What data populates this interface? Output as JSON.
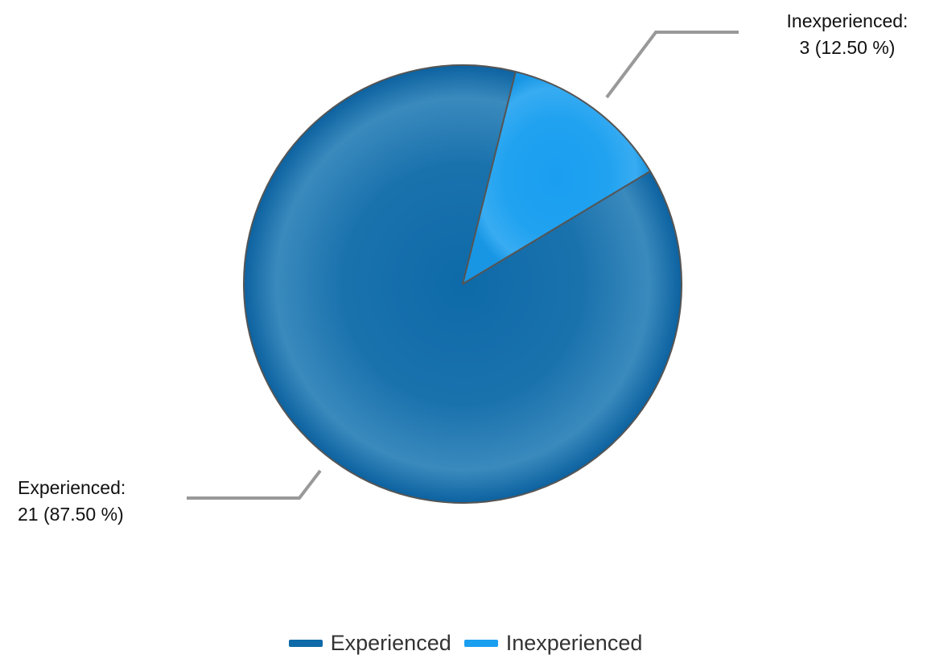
{
  "chart_data": {
    "type": "pie",
    "categories": [
      "Experienced",
      "Inexperienced"
    ],
    "values": [
      21,
      3
    ],
    "percentages": [
      "87.50 %",
      "12.50 %"
    ],
    "colors": [
      "#0e6aa8",
      "#1a9ef0"
    ],
    "slices": [
      {
        "name": "Experienced",
        "value": 21,
        "percent": "87.50 %",
        "label_line1": "Experienced:",
        "label_line2": "21 (87.50 %)"
      },
      {
        "name": "Inexperienced",
        "value": 3,
        "percent": "12.50 %",
        "label_line1": "Inexperienced:",
        "label_line2": "3 (12.50 %)"
      }
    ],
    "legend": {
      "position": "bottom",
      "items": [
        {
          "label": "Experienced",
          "color": "#0e6aa8"
        },
        {
          "label": "Inexperienced",
          "color": "#1a9ef0"
        }
      ]
    }
  }
}
